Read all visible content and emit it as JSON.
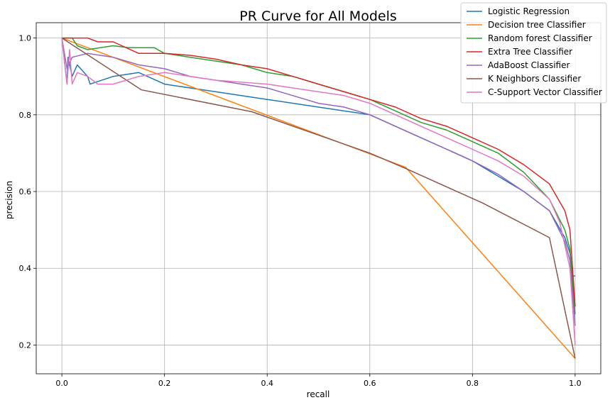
{
  "chart_data": {
    "type": "line",
    "title": "PR Curve for All Models",
    "xlabel": "recall",
    "ylabel": "precision",
    "xlim": [
      -0.05,
      1.05
    ],
    "ylim": [
      0.125,
      1.04
    ],
    "xticks": [
      0.0,
      0.2,
      0.4,
      0.6,
      0.8,
      1.0
    ],
    "xtick_labels": [
      "0.0",
      "0.2",
      "0.4",
      "0.6",
      "0.8",
      "1.0"
    ],
    "yticks": [
      0.2,
      0.4,
      0.6,
      0.8,
      1.0
    ],
    "ytick_labels": [
      "0.2",
      "0.4",
      "0.6",
      "0.8",
      "1.0"
    ],
    "grid": true,
    "legend_position": "top-right",
    "series": [
      {
        "name": "Logistic Regression",
        "color": "#1f77b4",
        "points": [
          [
            0,
            1.0
          ],
          [
            0.01,
            0.88
          ],
          [
            0.012,
            0.95
          ],
          [
            0.02,
            0.9
          ],
          [
            0.03,
            0.93
          ],
          [
            0.05,
            0.9
          ],
          [
            0.055,
            0.88
          ],
          [
            0.1,
            0.9
          ],
          [
            0.15,
            0.91
          ],
          [
            0.2,
            0.88
          ],
          [
            0.3,
            0.86
          ],
          [
            0.4,
            0.84
          ],
          [
            0.5,
            0.82
          ],
          [
            0.6,
            0.8
          ],
          [
            0.65,
            0.77
          ],
          [
            0.7,
            0.74
          ],
          [
            0.75,
            0.71
          ],
          [
            0.8,
            0.68
          ],
          [
            0.85,
            0.64
          ],
          [
            0.9,
            0.6
          ],
          [
            0.95,
            0.55
          ],
          [
            0.98,
            0.48
          ],
          [
            0.99,
            0.44
          ],
          [
            0.995,
            0.38
          ],
          [
            1.0,
            0.38
          ]
        ]
      },
      {
        "name": "Decision tree Classifier",
        "color": "#ff7f0e",
        "points": [
          [
            0.0,
            1.0
          ],
          [
            0.67,
            0.663
          ],
          [
            1.0,
            0.165
          ]
        ]
      },
      {
        "name": "Random forest Classifier",
        "color": "#2ca02c",
        "points": [
          [
            0,
            1.0
          ],
          [
            0.02,
            1.0
          ],
          [
            0.03,
            0.98
          ],
          [
            0.05,
            0.97
          ],
          [
            0.1,
            0.98
          ],
          [
            0.13,
            0.975
          ],
          [
            0.18,
            0.975
          ],
          [
            0.2,
            0.96
          ],
          [
            0.25,
            0.95
          ],
          [
            0.3,
            0.94
          ],
          [
            0.35,
            0.93
          ],
          [
            0.4,
            0.91
          ],
          [
            0.45,
            0.9
          ],
          [
            0.5,
            0.88
          ],
          [
            0.55,
            0.86
          ],
          [
            0.6,
            0.84
          ],
          [
            0.65,
            0.81
          ],
          [
            0.7,
            0.78
          ],
          [
            0.75,
            0.76
          ],
          [
            0.8,
            0.73
          ],
          [
            0.85,
            0.7
          ],
          [
            0.9,
            0.65
          ],
          [
            0.95,
            0.58
          ],
          [
            0.98,
            0.5
          ],
          [
            0.99,
            0.45
          ],
          [
            1.0,
            0.28
          ]
        ]
      },
      {
        "name": "Extra Tree Classifier",
        "color": "#d62728",
        "points": [
          [
            0,
            1.0
          ],
          [
            0.05,
            1.0
          ],
          [
            0.07,
            0.99
          ],
          [
            0.1,
            0.99
          ],
          [
            0.15,
            0.96
          ],
          [
            0.2,
            0.96
          ],
          [
            0.25,
            0.955
          ],
          [
            0.3,
            0.945
          ],
          [
            0.35,
            0.93
          ],
          [
            0.4,
            0.92
          ],
          [
            0.45,
            0.9
          ],
          [
            0.5,
            0.88
          ],
          [
            0.55,
            0.86
          ],
          [
            0.6,
            0.84
          ],
          [
            0.65,
            0.82
          ],
          [
            0.7,
            0.79
          ],
          [
            0.75,
            0.77
          ],
          [
            0.8,
            0.74
          ],
          [
            0.85,
            0.71
          ],
          [
            0.9,
            0.67
          ],
          [
            0.95,
            0.62
          ],
          [
            0.98,
            0.55
          ],
          [
            0.99,
            0.5
          ],
          [
            1.0,
            0.3
          ]
        ]
      },
      {
        "name": "AdaBoost Classifier",
        "color": "#9467bd",
        "points": [
          [
            0,
            1.0
          ],
          [
            0.01,
            0.92
          ],
          [
            0.02,
            0.95
          ],
          [
            0.05,
            0.96
          ],
          [
            0.1,
            0.95
          ],
          [
            0.15,
            0.93
          ],
          [
            0.2,
            0.92
          ],
          [
            0.25,
            0.9
          ],
          [
            0.3,
            0.89
          ],
          [
            0.35,
            0.88
          ],
          [
            0.4,
            0.87
          ],
          [
            0.45,
            0.85
          ],
          [
            0.5,
            0.83
          ],
          [
            0.55,
            0.82
          ],
          [
            0.6,
            0.8
          ],
          [
            0.65,
            0.77
          ],
          [
            0.7,
            0.74
          ],
          [
            0.75,
            0.71
          ],
          [
            0.8,
            0.68
          ],
          [
            0.85,
            0.645
          ],
          [
            0.9,
            0.6
          ],
          [
            0.95,
            0.55
          ],
          [
            0.98,
            0.47
          ],
          [
            0.99,
            0.42
          ],
          [
            1.0,
            0.25
          ]
        ]
      },
      {
        "name": "K Neighbors Classifier",
        "color": "#8c564b",
        "points": [
          [
            0.0,
            1.0
          ],
          [
            0.155,
            0.865
          ],
          [
            0.37,
            0.808
          ],
          [
            0.6,
            0.7
          ],
          [
            0.67,
            0.66
          ],
          [
            0.82,
            0.57
          ],
          [
            0.95,
            0.48
          ],
          [
            1.0,
            0.165
          ]
        ]
      },
      {
        "name": "C-Support Vector Classifier",
        "color": "#e377c2",
        "points": [
          [
            0,
            1.0
          ],
          [
            0.01,
            0.88
          ],
          [
            0.015,
            0.97
          ],
          [
            0.02,
            0.88
          ],
          [
            0.03,
            0.91
          ],
          [
            0.05,
            0.9
          ],
          [
            0.07,
            0.88
          ],
          [
            0.1,
            0.88
          ],
          [
            0.15,
            0.9
          ],
          [
            0.2,
            0.91
          ],
          [
            0.25,
            0.9
          ],
          [
            0.3,
            0.89
          ],
          [
            0.35,
            0.885
          ],
          [
            0.4,
            0.88
          ],
          [
            0.45,
            0.87
          ],
          [
            0.5,
            0.86
          ],
          [
            0.55,
            0.85
          ],
          [
            0.6,
            0.83
          ],
          [
            0.65,
            0.8
          ],
          [
            0.7,
            0.77
          ],
          [
            0.75,
            0.74
          ],
          [
            0.8,
            0.71
          ],
          [
            0.85,
            0.68
          ],
          [
            0.9,
            0.64
          ],
          [
            0.95,
            0.58
          ],
          [
            0.97,
            0.52
          ],
          [
            0.98,
            0.46
          ],
          [
            0.99,
            0.4
          ],
          [
            1.0,
            0.2
          ]
        ]
      }
    ]
  }
}
